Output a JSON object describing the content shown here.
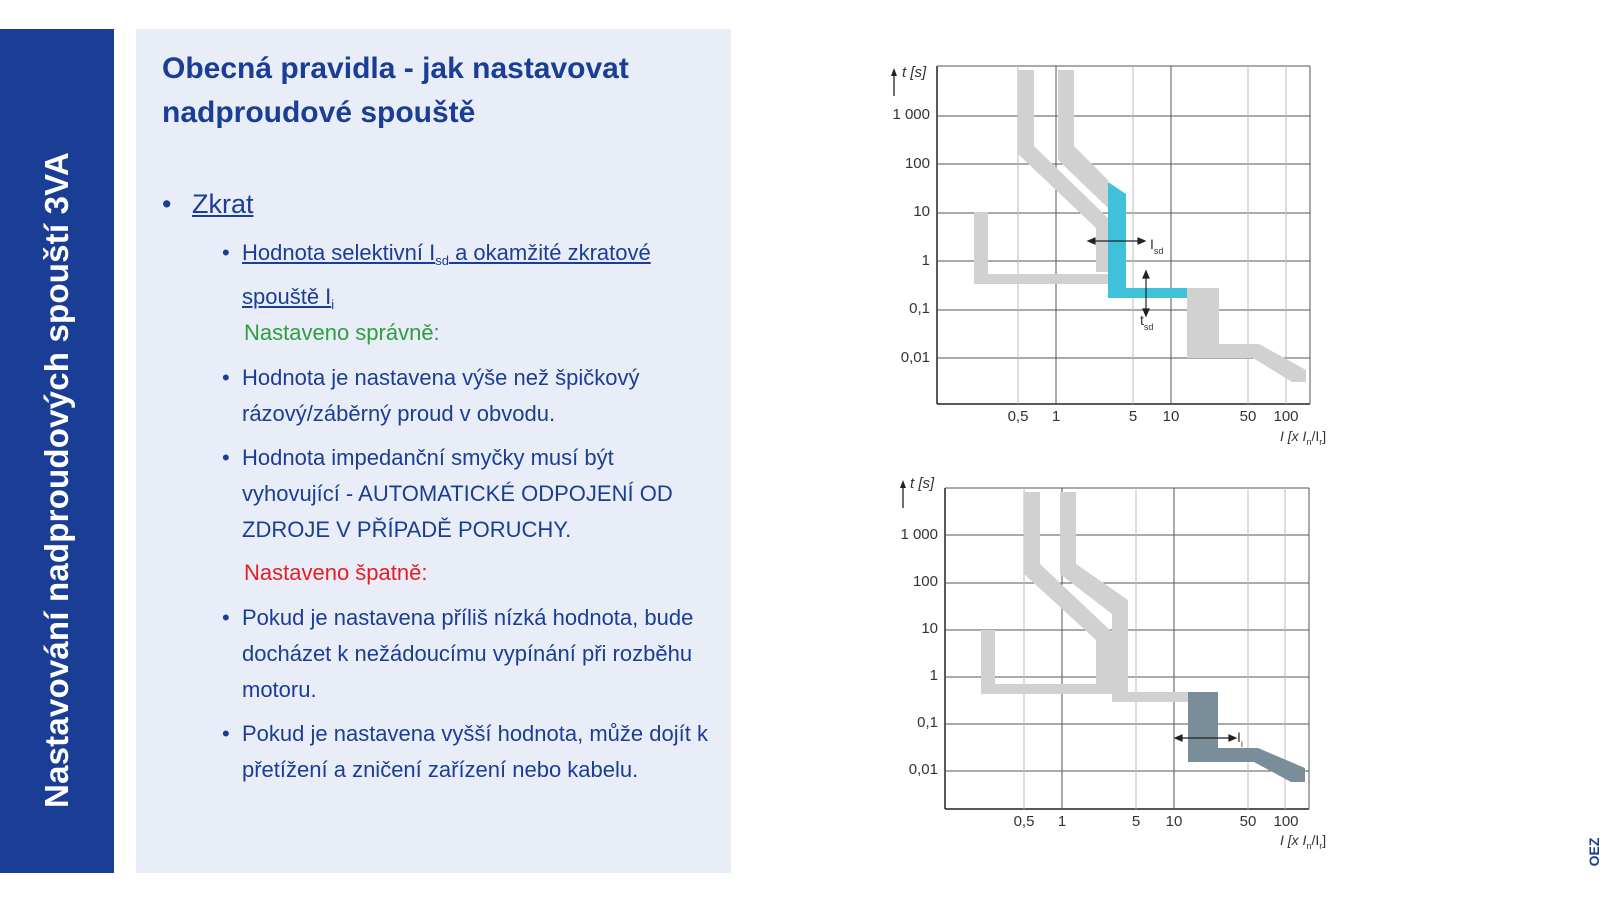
{
  "side_title": "Nastavování nadproudových spouští 3VA",
  "title": "Obecná pravidla - jak nastavovat nadproudové spouště",
  "level1": {
    "bullet": "•",
    "text": "Zkrat"
  },
  "setting": {
    "bullet": "•",
    "text_a": "Hodnota selektivní I",
    "sub_a": "sd",
    "text_b": " a okamžité zkratové spouště I",
    "sub_b": "i"
  },
  "correct_label": "Nastaveno správně:",
  "correct_items": [
    "Hodnota je nastavena výše než špičkový rázový/záběrný proud v obvodu.",
    "Hodnota impedanční smyčky musí být vyhovující - AUTOMATICKÉ ODPOJENÍ OD ZDROJE V PŘÍPADĚ PORUCHY."
  ],
  "wrong_label": "Nastaveno špatně:",
  "wrong_items": [
    "Pokud je nastavena příliš nízká hodnota, bude docházet k nežádoucímu vypínání při rozběhu motoru.",
    "Pokud je nastavena vyšší hodnota, může dojít k přetížení a zničení zařízení nebo kabelu."
  ],
  "axis": {
    "y_label": "t [s]",
    "y_ticks": [
      "1 000",
      "100",
      "10",
      "1",
      "0,1",
      "0,01"
    ],
    "x_ticks": [
      "0,5",
      "1",
      "5",
      "10",
      "50",
      "100"
    ],
    "x_label_a": "I [x I",
    "x_sub_n": "n",
    "x_slash": "/I",
    "x_sub_r": "r",
    "x_close": "]"
  },
  "chart_top": {
    "highlight_color": "#3ec1d9",
    "label_isd": "I",
    "label_isd_sub": "sd",
    "label_tsd": "t",
    "label_tsd_sub": "sd"
  },
  "chart_bottom": {
    "highlight_color": "#7a8e9a",
    "label_ii": "I",
    "label_ii_sub": "i"
  },
  "logo": "OEZ"
}
